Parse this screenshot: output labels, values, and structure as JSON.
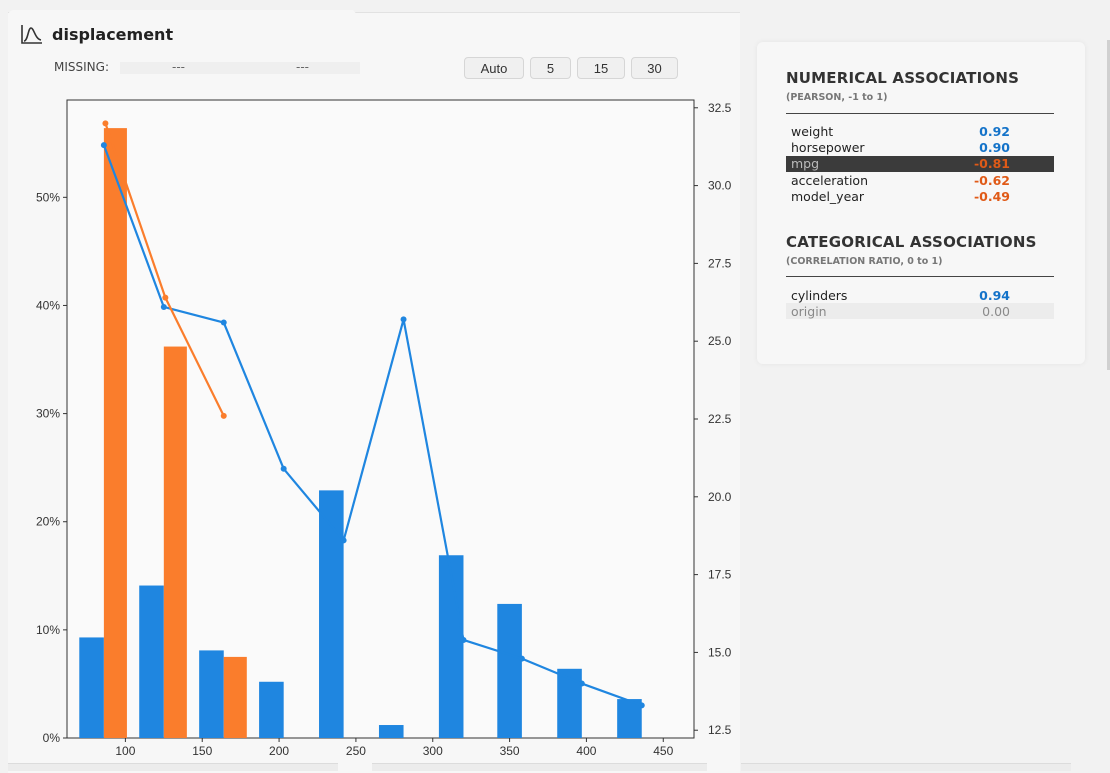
{
  "header": {
    "title": "displacement",
    "icon": "distribution-curve-icon"
  },
  "missing": {
    "label": "MISSING:",
    "count": "---",
    "percent": "---"
  },
  "bins": [
    "Auto",
    "5",
    "15",
    "30"
  ],
  "colors": {
    "blue": "#1f86e0",
    "orange": "#fa7d2c",
    "negative": "#e05a17",
    "positive": "#1473c9"
  },
  "chart_data": {
    "type": "bar+line",
    "x_ticks": [
      100,
      150,
      200,
      250,
      300,
      350,
      400,
      450
    ],
    "x_range": [
      62,
      470
    ],
    "y_left": {
      "ticks": [
        "0%",
        "10%",
        "20%",
        "30%",
        "40%",
        "50%"
      ],
      "range": [
        0,
        59
      ]
    },
    "y_right": {
      "ticks": [
        "12.5",
        "15.0",
        "17.5",
        "20.0",
        "22.5",
        "25.0",
        "27.5",
        "30.0",
        "32.5"
      ],
      "range": [
        12.25,
        32.75
      ]
    },
    "series": [
      {
        "color": "blue",
        "bars": [
          {
            "x0": 70,
            "x1": 86,
            "pct": 9.3
          },
          {
            "x0": 109,
            "x1": 125,
            "pct": 14.1
          },
          {
            "x0": 148,
            "x1": 164,
            "pct": 8.1
          },
          {
            "x0": 187,
            "x1": 203,
            "pct": 5.2
          },
          {
            "x0": 226,
            "x1": 242,
            "pct": 22.9
          },
          {
            "x0": 265,
            "x1": 281,
            "pct": 1.2
          },
          {
            "x0": 304,
            "x1": 320,
            "pct": 16.9
          },
          {
            "x0": 342,
            "x1": 358,
            "pct": 12.4
          },
          {
            "x0": 381,
            "x1": 397,
            "pct": 6.4
          },
          {
            "x0": 420,
            "x1": 436,
            "pct": 3.6
          }
        ],
        "line": [
          [
            86,
            31.3
          ],
          [
            125,
            26.1
          ],
          [
            164,
            25.6
          ],
          [
            203,
            20.9
          ],
          [
            242,
            18.6
          ],
          [
            281,
            25.7
          ],
          [
            320,
            15.4
          ],
          [
            358,
            14.8
          ],
          [
            397,
            14.0
          ],
          [
            436,
            13.3
          ]
        ]
      },
      {
        "color": "orange",
        "bars": [
          {
            "x0": 86,
            "x1": 101,
            "pct": 56.4
          },
          {
            "x0": 125,
            "x1": 140,
            "pct": 36.2
          },
          {
            "x0": 164,
            "x1": 179,
            "pct": 7.5
          }
        ],
        "line": [
          [
            87,
            32.0
          ],
          [
            126,
            26.4
          ],
          [
            164,
            22.6
          ]
        ]
      }
    ]
  },
  "numerical": {
    "title": "NUMERICAL ASSOCIATIONS",
    "subtitle": "(PEARSON, -1 to 1)",
    "rows": [
      {
        "name": "weight",
        "value": "0.92",
        "sign": "positive"
      },
      {
        "name": "horsepower",
        "value": "0.90",
        "sign": "positive"
      },
      {
        "name": "mpg",
        "value": "-0.81",
        "sign": "negative"
      },
      {
        "name": "acceleration",
        "value": "-0.62",
        "sign": "negative"
      },
      {
        "name": "model_year",
        "value": "-0.49",
        "sign": "negative"
      }
    ]
  },
  "categorical": {
    "title": "CATEGORICAL ASSOCIATIONS",
    "subtitle": "(CORRELATION RATIO, 0 to 1)",
    "rows": [
      {
        "name": "cylinders",
        "value": "0.94",
        "sign": "positive"
      },
      {
        "name": "origin",
        "value": "0.00",
        "sign": "zero"
      }
    ]
  }
}
